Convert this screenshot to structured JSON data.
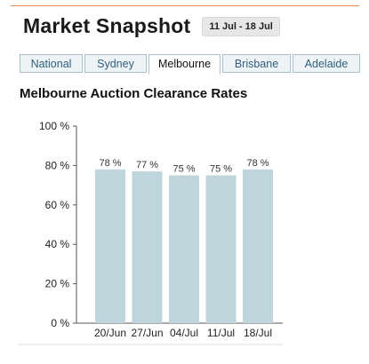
{
  "header": {
    "title": "Market Snapshot",
    "date_range": "11 Jul - 18 Jul"
  },
  "tabs": [
    {
      "label": "National",
      "active": false
    },
    {
      "label": "Sydney",
      "active": false
    },
    {
      "label": "Melbourne",
      "active": true
    },
    {
      "label": "Brisbane",
      "active": false
    },
    {
      "label": "Adelaide",
      "active": false
    }
  ],
  "colors": {
    "accent_line": "#e4894f",
    "bar_fill": "#bed5dc",
    "tab_text": "#2f5f7f"
  },
  "chart_data": {
    "type": "bar",
    "title": "Melbourne Auction Clearance Rates",
    "categories": [
      "20/Jun",
      "27/Jun",
      "04/Jul",
      "11/Jul",
      "18/Jul"
    ],
    "values": [
      78,
      77,
      75,
      75,
      78
    ],
    "data_labels": [
      "78 %",
      "77 %",
      "75 %",
      "75 %",
      "78 %"
    ],
    "y_ticks": [
      "0 %",
      "20 %",
      "40 %",
      "60 %",
      "80 %",
      "100 %"
    ],
    "ylim": [
      0,
      100
    ],
    "grid": false
  }
}
